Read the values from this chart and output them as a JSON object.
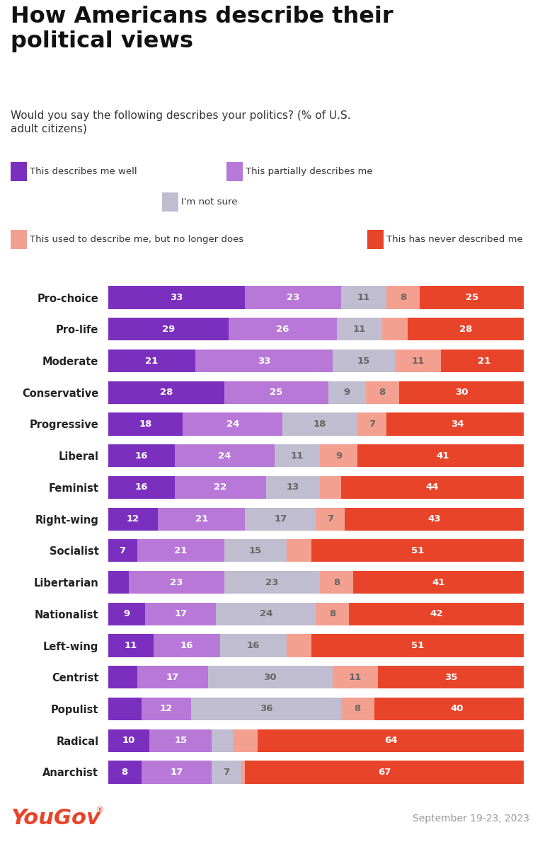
{
  "title": "How Americans describe their\npolitical views",
  "subtitle": "Would you say the following describes your politics? (% of U.S.\nadult citizens)",
  "date_label": "September 19-23, 2023",
  "categories": [
    "Pro-choice",
    "Pro-life",
    "Moderate",
    "Conservative",
    "Progressive",
    "Liberal",
    "Feminist",
    "Right-wing",
    "Socialist",
    "Libertarian",
    "Nationalist",
    "Left-wing",
    "Centrist",
    "Populist",
    "Radical",
    "Anarchist"
  ],
  "data": [
    [
      33,
      23,
      11,
      8,
      25
    ],
    [
      29,
      26,
      11,
      6,
      28
    ],
    [
      21,
      33,
      15,
      11,
      21
    ],
    [
      28,
      25,
      9,
      8,
      30
    ],
    [
      18,
      24,
      18,
      7,
      34
    ],
    [
      16,
      24,
      11,
      9,
      41
    ],
    [
      16,
      22,
      13,
      5,
      44
    ],
    [
      12,
      21,
      17,
      7,
      43
    ],
    [
      7,
      21,
      15,
      6,
      51
    ],
    [
      5,
      23,
      23,
      8,
      41
    ],
    [
      9,
      17,
      24,
      8,
      42
    ],
    [
      11,
      16,
      16,
      6,
      51
    ],
    [
      7,
      17,
      30,
      11,
      35
    ],
    [
      8,
      12,
      36,
      8,
      40
    ],
    [
      10,
      15,
      5,
      6,
      64
    ],
    [
      8,
      17,
      7,
      1,
      67
    ]
  ],
  "display_data": [
    [
      33,
      23,
      11,
      8,
      25
    ],
    [
      29,
      26,
      11,
      0,
      28
    ],
    [
      21,
      33,
      15,
      11,
      21
    ],
    [
      28,
      25,
      9,
      8,
      30
    ],
    [
      18,
      24,
      18,
      7,
      34
    ],
    [
      16,
      24,
      11,
      9,
      41
    ],
    [
      16,
      22,
      13,
      0,
      44
    ],
    [
      12,
      21,
      17,
      7,
      43
    ],
    [
      7,
      21,
      15,
      0,
      51
    ],
    [
      0,
      23,
      23,
      8,
      41
    ],
    [
      9,
      17,
      24,
      8,
      42
    ],
    [
      11,
      16,
      16,
      0,
      51
    ],
    [
      0,
      17,
      30,
      11,
      35
    ],
    [
      0,
      12,
      36,
      8,
      40
    ],
    [
      10,
      15,
      0,
      0,
      64
    ],
    [
      8,
      17,
      7,
      0,
      67
    ]
  ],
  "colors": [
    "#7B2FBE",
    "#B878D8",
    "#C0BDD0",
    "#F4A090",
    "#E8442A"
  ],
  "legend_labels": [
    "This describes me well",
    "This partially describes me",
    "I'm not sure",
    "This used to describe me, but no longer does",
    "This has never described me"
  ],
  "bg_color": "#FFFFFF",
  "bar_height": 0.72,
  "text_color_white": "#FFFFFF",
  "text_color_gray": "#666666",
  "yougov_color": "#E8442A",
  "label_fontsize": 10.5,
  "bar_label_fontsize": 9.5
}
